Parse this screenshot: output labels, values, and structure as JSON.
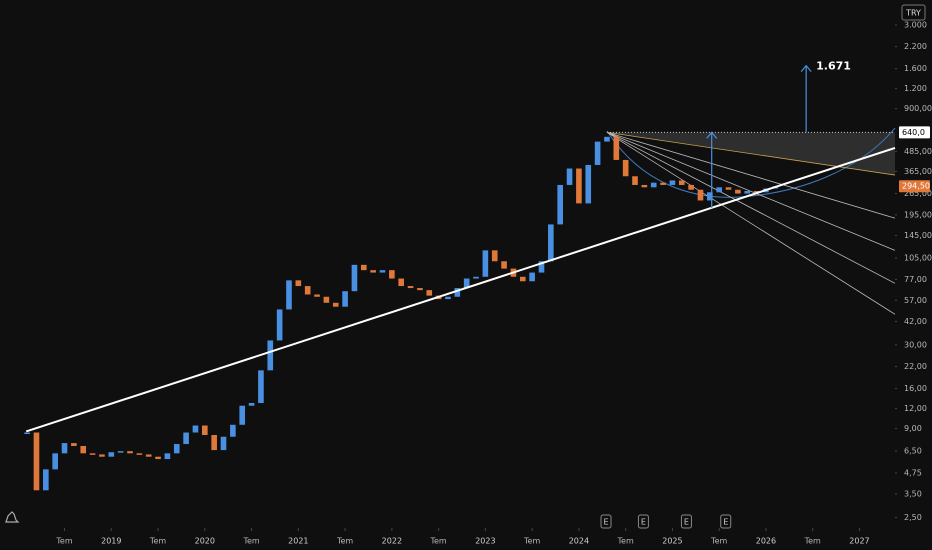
{
  "chart_data": {
    "type": "candlestick",
    "currency": "TRY",
    "log_scale": true,
    "grid": false,
    "up_color": "#4a90e2",
    "down_color": "#e0783a",
    "xlim": [
      2017.81,
      2027.38
    ],
    "ylim": [
      2.15,
      4300
    ],
    "xticks": [
      {
        "value": 2018.5,
        "label": "Tem"
      },
      2019,
      {
        "value": 2019.5,
        "label": "Tem"
      },
      2020,
      {
        "value": 2020.5,
        "label": "Tem"
      },
      2021,
      {
        "value": 2021.5,
        "label": "Tem"
      },
      2022,
      {
        "value": 2022.5,
        "label": "Tem"
      },
      2023,
      {
        "value": 2023.5,
        "label": "Tem"
      },
      2024,
      {
        "value": 2024.5,
        "label": "Tem"
      },
      2025,
      {
        "value": 2025.5,
        "label": "Tem"
      },
      2026,
      {
        "value": 2026.5,
        "label": "Tem"
      },
      2027
    ],
    "yticks": [
      {
        "value": 2.5,
        "label": "2,50"
      },
      {
        "value": 3.5,
        "label": "3,50"
      },
      {
        "value": 4.75,
        "label": "4,75"
      },
      {
        "value": 6.5,
        "label": "6,50"
      },
      {
        "value": 9,
        "label": "9,00"
      },
      {
        "value": 12,
        "label": "12,00"
      },
      {
        "value": 16,
        "label": "16,00"
      },
      {
        "value": 22,
        "label": "22,00"
      },
      {
        "value": 30,
        "label": "30,00"
      },
      {
        "value": 42,
        "label": "42,00"
      },
      {
        "value": 57,
        "label": "57,00"
      },
      {
        "value": 77,
        "label": "77,00"
      },
      {
        "value": 105,
        "label": "105,00"
      },
      {
        "value": 145,
        "label": "145,00"
      },
      {
        "value": 195,
        "label": "195,00"
      },
      {
        "value": 265,
        "label": "265,00"
      },
      {
        "value": 365,
        "label": "365,00"
      },
      {
        "value": 485,
        "label": "485,00"
      },
      {
        "value": 900,
        "label": "900,00"
      },
      {
        "value": 1200,
        "label": "1.200"
      },
      {
        "value": 1600,
        "label": "1.600"
      },
      {
        "value": 2200,
        "label": "2.200"
      },
      {
        "value": 3000,
        "label": "3.000"
      }
    ],
    "x": [
      2018.1,
      2018.2,
      2018.3,
      2018.4,
      2018.5,
      2018.6,
      2018.7,
      2018.8,
      2018.9,
      2019.0,
      2019.1,
      2019.2,
      2019.3,
      2019.4,
      2019.5,
      2019.6,
      2019.7,
      2019.8,
      2019.9,
      2020.0,
      2020.1,
      2020.2,
      2020.3,
      2020.4,
      2020.5,
      2020.6,
      2020.7,
      2020.8,
      2020.9,
      2021.0,
      2021.1,
      2021.2,
      2021.3,
      2021.4,
      2021.5,
      2021.6,
      2021.7,
      2021.8,
      2021.9,
      2022.0,
      2022.1,
      2022.2,
      2022.3,
      2022.4,
      2022.5,
      2022.6,
      2022.7,
      2022.8,
      2022.9,
      2023.0,
      2023.1,
      2023.2,
      2023.3,
      2023.4,
      2023.5,
      2023.6,
      2023.7,
      2023.8,
      2023.9,
      2024.0,
      2024.1,
      2024.2,
      2024.3,
      2024.4,
      2024.5,
      2024.6,
      2024.7,
      2024.8,
      2024.9,
      2025.0,
      2025.1,
      2025.2,
      2025.3,
      2025.4,
      2025.5,
      2025.6,
      2025.7,
      2025.8,
      2025.9,
      2026.0,
      2026.1
    ],
    "values": [
      8.5,
      3.7,
      5,
      6.3,
      7.3,
      7,
      6.3,
      6.2,
      6,
      6.4,
      6.5,
      6.3,
      6.2,
      6,
      5.8,
      6.3,
      7.2,
      8.5,
      9.4,
      8.2,
      6.6,
      8,
      9.5,
      12.5,
      13,
      20.8,
      32,
      50,
      76,
      70,
      62,
      60,
      55,
      52,
      65,
      95,
      88,
      85,
      88,
      78,
      70,
      68,
      66,
      61,
      58,
      60,
      68,
      78,
      80,
      117,
      100,
      90,
      80,
      75,
      85,
      100,
      170,
      300,
      380,
      230,
      400,
      560,
      600,
      430,
      340,
      300,
      290,
      310,
      300,
      320,
      300,
      280,
      240,
      270,
      290,
      280,
      265,
      275,
      270,
      285,
      294.5
    ],
    "level": {
      "value": 640,
      "label": "640,0"
    },
    "last_price": {
      "value": 294.5,
      "label": "294,50"
    },
    "trendline": {
      "x": [
        2018.09,
        2027.38
      ],
      "y": [
        8.63,
        511
      ]
    },
    "fan": {
      "from": {
        "x": 2024.3,
        "y": 640
      },
      "ends": [
        346,
        186,
        117,
        72.8,
        46.6
      ],
      "colors": [
        "#c9a24a",
        "#bbbbbb",
        "#bbbbbb",
        "#bbbbbb",
        "#bbbbbb"
      ]
    },
    "arrows": [
      {
        "x": 2025.42,
        "from": 215,
        "to": 640
      },
      {
        "x": 2026.43,
        "from": 640,
        "to": 1671,
        "label": "1.671"
      }
    ],
    "events": {
      "x": [
        2024.29,
        2024.69,
        2025.15,
        2025.57
      ],
      "labels": [
        "E",
        "E",
        "E",
        "E"
      ]
    }
  }
}
